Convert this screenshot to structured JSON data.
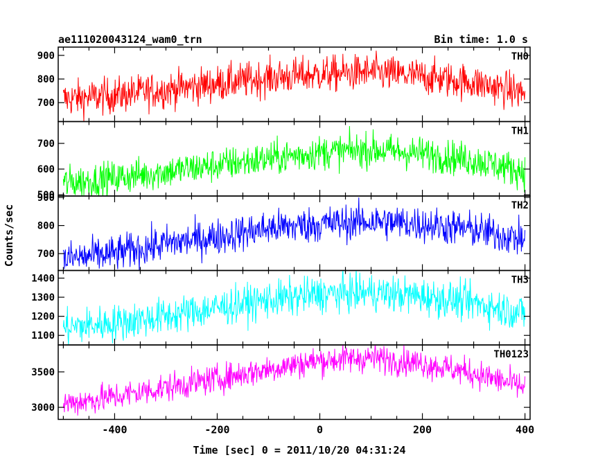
{
  "header": {
    "title": "ae111020043124_wam0_trn",
    "bin_time": "Bin time: 1.0 s"
  },
  "chart_data": {
    "type": "line",
    "xlabel": "Time [sec] 0 = 2011/10/20 04:31:24",
    "ylabel": "Counts/sec",
    "xlim": [
      -510,
      410
    ],
    "x_range": [
      -500,
      400
    ],
    "xticks": [
      -400,
      -200,
      0,
      200,
      400
    ],
    "panels": [
      {
        "name": "TH0",
        "color": "#ff0000",
        "ylim": [
          620,
          935
        ],
        "yticks": [
          700,
          800,
          900
        ],
        "trend": [
          [
            -500,
            715
          ],
          [
            -400,
            730
          ],
          [
            -300,
            755
          ],
          [
            -200,
            780
          ],
          [
            -100,
            805
          ],
          [
            0,
            820
          ],
          [
            100,
            828
          ],
          [
            200,
            810
          ],
          [
            300,
            785
          ],
          [
            400,
            740
          ]
        ],
        "noise": 38
      },
      {
        "name": "TH1",
        "color": "#00ff00",
        "ylim": [
          495,
          785
        ],
        "yticks": [
          500,
          600,
          700
        ],
        "trend": [
          [
            -500,
            545
          ],
          [
            -400,
            565
          ],
          [
            -300,
            590
          ],
          [
            -200,
            615
          ],
          [
            -100,
            640
          ],
          [
            0,
            665
          ],
          [
            100,
            675
          ],
          [
            200,
            660
          ],
          [
            300,
            635
          ],
          [
            400,
            590
          ]
        ],
        "noise": 33
      },
      {
        "name": "TH2",
        "color": "#0000ff",
        "ylim": [
          640,
          905
        ],
        "yticks": [
          700,
          800,
          900
        ],
        "trend": [
          [
            -500,
            680
          ],
          [
            -400,
            700
          ],
          [
            -300,
            735
          ],
          [
            -200,
            760
          ],
          [
            -100,
            790
          ],
          [
            0,
            805
          ],
          [
            100,
            815
          ],
          [
            200,
            805
          ],
          [
            300,
            785
          ],
          [
            400,
            750
          ]
        ],
        "noise": 32
      },
      {
        "name": "TH3",
        "color": "#00ffff",
        "ylim": [
          1050,
          1440
        ],
        "yticks": [
          1100,
          1200,
          1300,
          1400
        ],
        "trend": [
          [
            -500,
            1140
          ],
          [
            -400,
            1165
          ],
          [
            -300,
            1200
          ],
          [
            -200,
            1245
          ],
          [
            -100,
            1285
          ],
          [
            0,
            1315
          ],
          [
            100,
            1325
          ],
          [
            200,
            1305
          ],
          [
            300,
            1270
          ],
          [
            400,
            1215
          ]
        ],
        "noise": 48
      },
      {
        "name": "TH0123",
        "color": "#ff00ff",
        "ylim": [
          2830,
          3880
        ],
        "yticks": [
          3000,
          3500
        ],
        "trend": [
          [
            -500,
            3050
          ],
          [
            -400,
            3150
          ],
          [
            -300,
            3280
          ],
          [
            -200,
            3400
          ],
          [
            -100,
            3540
          ],
          [
            0,
            3660
          ],
          [
            100,
            3700
          ],
          [
            200,
            3620
          ],
          [
            300,
            3480
          ],
          [
            400,
            3280
          ]
        ],
        "noise": 100
      }
    ]
  }
}
